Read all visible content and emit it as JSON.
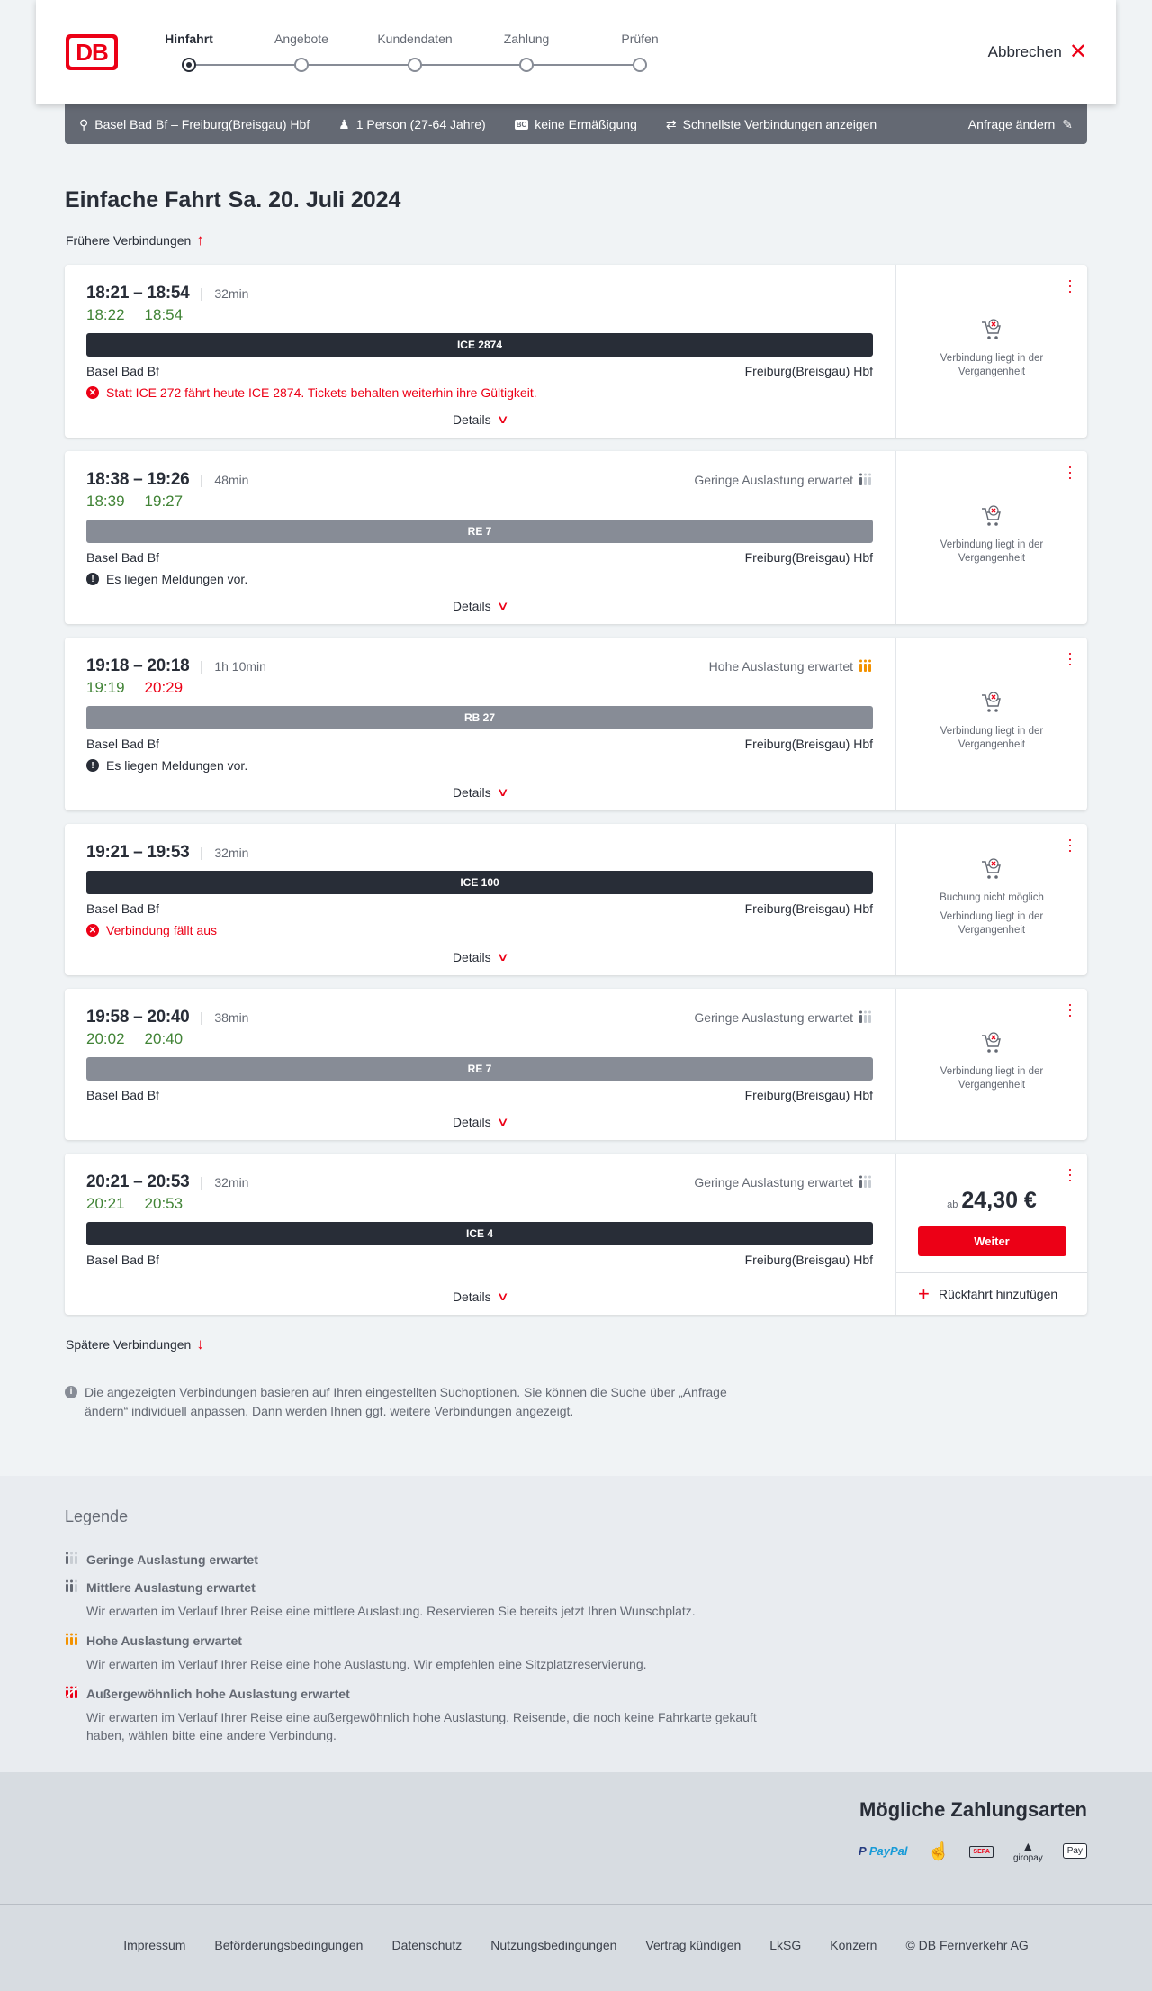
{
  "header": {
    "logo": "DB",
    "steps": [
      "Hinfahrt",
      "Angebote",
      "Kundendaten",
      "Zahlung",
      "Prüfen"
    ],
    "active_step": 0,
    "cancel": "Abbrechen"
  },
  "search": {
    "route": "Basel Bad Bf – Freiburg(Breisgau) Hbf",
    "passengers": "1 Person (27-64 Jahre)",
    "discount": "keine Ermäßigung",
    "discount_badge": "BC",
    "fastest": "Schnellste Verbindungen anzeigen",
    "edit": "Anfrage ändern"
  },
  "page": {
    "title": "Einfache Fahrt",
    "date": "Sa. 20. Juli 2024",
    "earlier": "Frühere Verbindungen",
    "later": "Spätere Verbindungen",
    "details": "Details"
  },
  "colors": {
    "accent": "#ec0016",
    "on_time": "#408335",
    "delayed": "#ec0016",
    "ice_bar": "#282d37",
    "regional_bar": "#878c96",
    "high_occupancy": "#f39200"
  },
  "connections": [
    {
      "times": "18:21 – 18:54",
      "duration": "32min",
      "rt_dep": "18:22",
      "rt_dep_status": "on_time",
      "rt_arr": "18:54",
      "rt_arr_status": "on_time",
      "train": "ICE 2874",
      "train_type": "ice",
      "from": "Basel Bad Bf",
      "to": "Freiburg(Breisgau) Hbf",
      "message": "Statt ICE 272 fährt heute ICE 2874. Tickets behalten weiterhin ihre Gültigkeit.",
      "message_type": "error",
      "status_lines": [
        "Verbindung liegt in der Vergangenheit"
      ]
    },
    {
      "times": "18:38 – 19:26",
      "duration": "48min",
      "occupancy": "Geringe Auslastung erwartet",
      "occupancy_level": "low",
      "rt_dep": "18:39",
      "rt_dep_status": "on_time",
      "rt_arr": "19:27",
      "rt_arr_status": "on_time",
      "train": "RE 7",
      "train_type": "regional",
      "from": "Basel Bad Bf",
      "to": "Freiburg(Breisgau) Hbf",
      "message": "Es liegen Meldungen vor.",
      "message_type": "info",
      "status_lines": [
        "Verbindung liegt in der Vergangenheit"
      ]
    },
    {
      "times": "19:18 – 20:18",
      "duration": "1h 10min",
      "occupancy": "Hohe Auslastung erwartet",
      "occupancy_level": "high",
      "rt_dep": "19:19",
      "rt_dep_status": "on_time",
      "rt_arr": "20:29",
      "rt_arr_status": "delayed",
      "train": "RB 27",
      "train_type": "regional",
      "from": "Basel Bad Bf",
      "to": "Freiburg(Breisgau) Hbf",
      "message": "Es liegen Meldungen vor.",
      "message_type": "info",
      "status_lines": [
        "Verbindung liegt in der Vergangenheit"
      ]
    },
    {
      "times": "19:21 – 19:53",
      "duration": "32min",
      "train": "ICE 100",
      "train_type": "ice",
      "from": "Basel Bad Bf",
      "to": "Freiburg(Breisgau) Hbf",
      "message": "Verbindung fällt aus",
      "message_type": "error",
      "status_lines": [
        "Buchung nicht möglich",
        "Verbindung liegt in der Vergangenheit"
      ]
    },
    {
      "times": "19:58 – 20:40",
      "duration": "38min",
      "occupancy": "Geringe Auslastung erwartet",
      "occupancy_level": "low",
      "rt_dep": "20:02",
      "rt_dep_status": "on_time",
      "rt_arr": "20:40",
      "rt_arr_status": "on_time",
      "train": "RE 7",
      "train_type": "regional",
      "from": "Basel Bad Bf",
      "to": "Freiburg(Breisgau) Hbf",
      "status_lines": [
        "Verbindung liegt in der Vergangenheit"
      ]
    },
    {
      "times": "20:21 – 20:53",
      "duration": "32min",
      "occupancy": "Geringe Auslastung erwartet",
      "occupancy_level": "low",
      "rt_dep": "20:21",
      "rt_dep_status": "on_time",
      "rt_arr": "20:53",
      "rt_arr_status": "on_time",
      "train": "ICE 4",
      "train_type": "ice",
      "from": "Basel Bad Bf",
      "to": "Freiburg(Breisgau) Hbf",
      "price_prefix": "ab",
      "price": "24,30 €",
      "cta": "Weiter",
      "return_trip": "Rückfahrt hinzufügen"
    }
  ],
  "info_text": "Die angezeigten Verbindungen basieren auf Ihren eingestellten Suchoptionen. Sie können die Suche über „Anfrage ändern“ individuell anpassen. Dann werden Ihnen ggf. weitere Verbindungen angezeigt.",
  "legend": {
    "title": "Legende",
    "items": [
      {
        "level": "low",
        "title": "Geringe Auslastung erwartet"
      },
      {
        "level": "medium",
        "title": "Mittlere Auslastung erwartet",
        "desc": "Wir erwarten im Verlauf Ihrer Reise eine mittlere Auslastung. Reservieren Sie bereits jetzt Ihren Wunschplatz."
      },
      {
        "level": "high",
        "title": "Hohe Auslastung erwartet",
        "desc": "Wir erwarten im Verlauf Ihrer Reise eine hohe Auslastung. Wir empfehlen eine Sitzplatzreservierung."
      },
      {
        "level": "exceptional",
        "title": "Außergewöhnlich hohe Auslastung erwartet",
        "desc": "Wir erwarten im Verlauf Ihrer Reise eine außergewöhnlich hohe Auslastung. Reisende, die noch keine Fahrkarte gekauft haben, wählen bitte eine andere Verbindung."
      }
    ]
  },
  "payment": {
    "title": "Mögliche Zahlungsarten",
    "methods": [
      {
        "icon": "paypal-icon",
        "label": "PayPal"
      },
      {
        "icon": "credit-card-hand-icon",
        "label": ""
      },
      {
        "icon": "sepa-icon",
        "label": "SEPA"
      },
      {
        "icon": "giropay-icon",
        "label": "giropay"
      },
      {
        "icon": "apple-pay-icon",
        "label": "Pay"
      }
    ]
  },
  "footer": {
    "links": [
      "Impressum",
      "Beförderungsbedingungen",
      "Datenschutz",
      "Nutzungsbedingungen",
      "Vertrag kündigen",
      "LkSG",
      "Konzern",
      "© DB Fernverkehr AG"
    ]
  }
}
